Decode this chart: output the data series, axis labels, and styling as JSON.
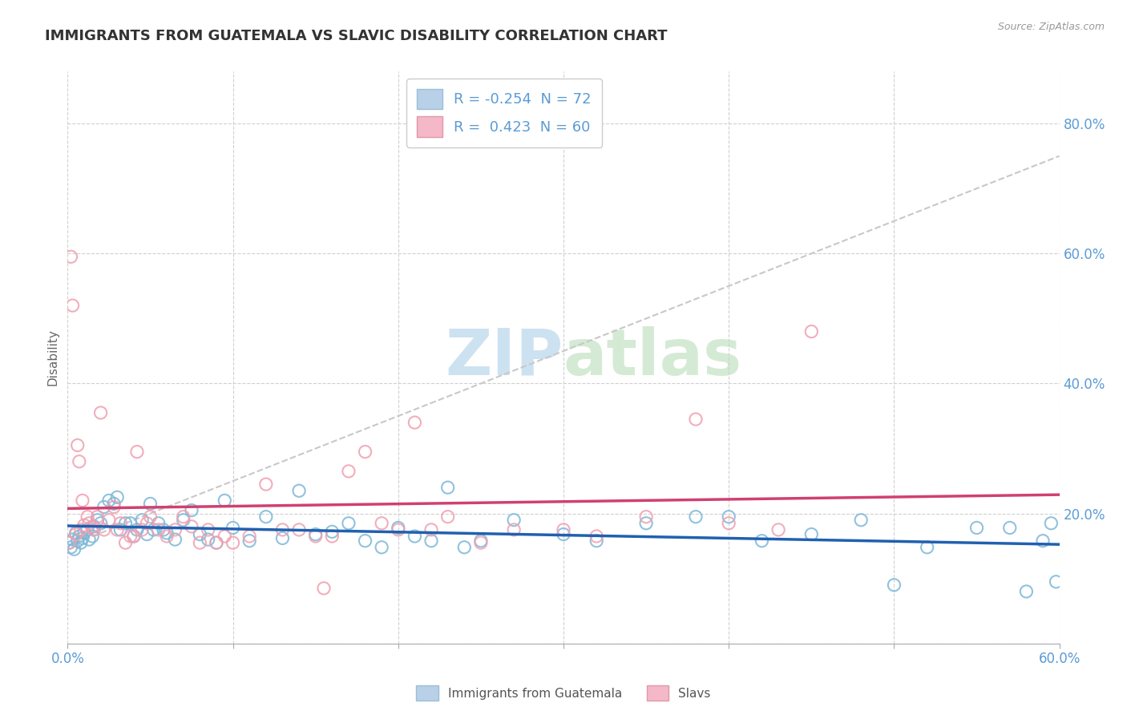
{
  "title": "IMMIGRANTS FROM GUATEMALA VS SLAVIC DISABILITY CORRELATION CHART",
  "source": "Source: ZipAtlas.com",
  "ylabel": "Disability",
  "watermark_zip": "ZIP",
  "watermark_atlas": "atlas",
  "background_color": "#ffffff",
  "blue_color": "#7eb8d8",
  "pink_color": "#f0a0b0",
  "blue_trend_color": "#2060b0",
  "pink_trend_color": "#d04070",
  "grey_trend_color": "#c8c8c8",
  "blue_scatter": [
    [
      0.001,
      0.155
    ],
    [
      0.002,
      0.148
    ],
    [
      0.003,
      0.16
    ],
    [
      0.004,
      0.145
    ],
    [
      0.005,
      0.17
    ],
    [
      0.006,
      0.158
    ],
    [
      0.007,
      0.165
    ],
    [
      0.008,
      0.155
    ],
    [
      0.009,
      0.162
    ],
    [
      0.01,
      0.17
    ],
    [
      0.012,
      0.175
    ],
    [
      0.013,
      0.16
    ],
    [
      0.015,
      0.165
    ],
    [
      0.016,
      0.18
    ],
    [
      0.018,
      0.19
    ],
    [
      0.02,
      0.185
    ],
    [
      0.022,
      0.21
    ],
    [
      0.025,
      0.22
    ],
    [
      0.028,
      0.215
    ],
    [
      0.03,
      0.225
    ],
    [
      0.032,
      0.175
    ],
    [
      0.035,
      0.185
    ],
    [
      0.038,
      0.185
    ],
    [
      0.04,
      0.165
    ],
    [
      0.042,
      0.175
    ],
    [
      0.045,
      0.19
    ],
    [
      0.048,
      0.168
    ],
    [
      0.05,
      0.215
    ],
    [
      0.052,
      0.175
    ],
    [
      0.055,
      0.185
    ],
    [
      0.058,
      0.175
    ],
    [
      0.06,
      0.17
    ],
    [
      0.065,
      0.16
    ],
    [
      0.07,
      0.19
    ],
    [
      0.075,
      0.205
    ],
    [
      0.08,
      0.168
    ],
    [
      0.085,
      0.16
    ],
    [
      0.09,
      0.155
    ],
    [
      0.095,
      0.22
    ],
    [
      0.1,
      0.178
    ],
    [
      0.11,
      0.158
    ],
    [
      0.12,
      0.195
    ],
    [
      0.13,
      0.162
    ],
    [
      0.14,
      0.235
    ],
    [
      0.15,
      0.168
    ],
    [
      0.16,
      0.172
    ],
    [
      0.17,
      0.185
    ],
    [
      0.18,
      0.158
    ],
    [
      0.19,
      0.148
    ],
    [
      0.2,
      0.178
    ],
    [
      0.21,
      0.165
    ],
    [
      0.22,
      0.158
    ],
    [
      0.23,
      0.24
    ],
    [
      0.24,
      0.148
    ],
    [
      0.25,
      0.158
    ],
    [
      0.27,
      0.19
    ],
    [
      0.3,
      0.168
    ],
    [
      0.32,
      0.158
    ],
    [
      0.35,
      0.185
    ],
    [
      0.38,
      0.195
    ],
    [
      0.4,
      0.195
    ],
    [
      0.42,
      0.158
    ],
    [
      0.45,
      0.168
    ],
    [
      0.48,
      0.19
    ],
    [
      0.5,
      0.09
    ],
    [
      0.52,
      0.148
    ],
    [
      0.55,
      0.178
    ],
    [
      0.57,
      0.178
    ],
    [
      0.58,
      0.08
    ],
    [
      0.59,
      0.158
    ],
    [
      0.595,
      0.185
    ],
    [
      0.598,
      0.095
    ]
  ],
  "pink_scatter": [
    [
      0.001,
      0.155
    ],
    [
      0.002,
      0.595
    ],
    [
      0.003,
      0.52
    ],
    [
      0.005,
      0.168
    ],
    [
      0.006,
      0.305
    ],
    [
      0.007,
      0.28
    ],
    [
      0.008,
      0.175
    ],
    [
      0.009,
      0.22
    ],
    [
      0.01,
      0.182
    ],
    [
      0.012,
      0.195
    ],
    [
      0.013,
      0.185
    ],
    [
      0.015,
      0.18
    ],
    [
      0.016,
      0.175
    ],
    [
      0.018,
      0.195
    ],
    [
      0.02,
      0.355
    ],
    [
      0.022,
      0.175
    ],
    [
      0.025,
      0.19
    ],
    [
      0.028,
      0.21
    ],
    [
      0.03,
      0.175
    ],
    [
      0.032,
      0.185
    ],
    [
      0.035,
      0.155
    ],
    [
      0.038,
      0.165
    ],
    [
      0.04,
      0.165
    ],
    [
      0.042,
      0.295
    ],
    [
      0.045,
      0.175
    ],
    [
      0.048,
      0.185
    ],
    [
      0.05,
      0.195
    ],
    [
      0.055,
      0.175
    ],
    [
      0.06,
      0.165
    ],
    [
      0.065,
      0.175
    ],
    [
      0.07,
      0.195
    ],
    [
      0.075,
      0.18
    ],
    [
      0.08,
      0.155
    ],
    [
      0.085,
      0.175
    ],
    [
      0.09,
      0.155
    ],
    [
      0.095,
      0.165
    ],
    [
      0.1,
      0.155
    ],
    [
      0.11,
      0.165
    ],
    [
      0.12,
      0.245
    ],
    [
      0.13,
      0.175
    ],
    [
      0.14,
      0.175
    ],
    [
      0.15,
      0.165
    ],
    [
      0.155,
      0.085
    ],
    [
      0.16,
      0.165
    ],
    [
      0.17,
      0.265
    ],
    [
      0.18,
      0.295
    ],
    [
      0.19,
      0.185
    ],
    [
      0.2,
      0.175
    ],
    [
      0.21,
      0.34
    ],
    [
      0.22,
      0.175
    ],
    [
      0.23,
      0.195
    ],
    [
      0.25,
      0.155
    ],
    [
      0.27,
      0.175
    ],
    [
      0.3,
      0.175
    ],
    [
      0.32,
      0.165
    ],
    [
      0.35,
      0.195
    ],
    [
      0.38,
      0.345
    ],
    [
      0.4,
      0.185
    ],
    [
      0.43,
      0.175
    ],
    [
      0.45,
      0.48
    ]
  ],
  "xmin": 0.0,
  "xmax": 0.6,
  "ymin": 0.0,
  "ymax": 0.88,
  "blue_R": "-0.254",
  "blue_N": "72",
  "pink_R": "0.423",
  "pink_N": "60"
}
